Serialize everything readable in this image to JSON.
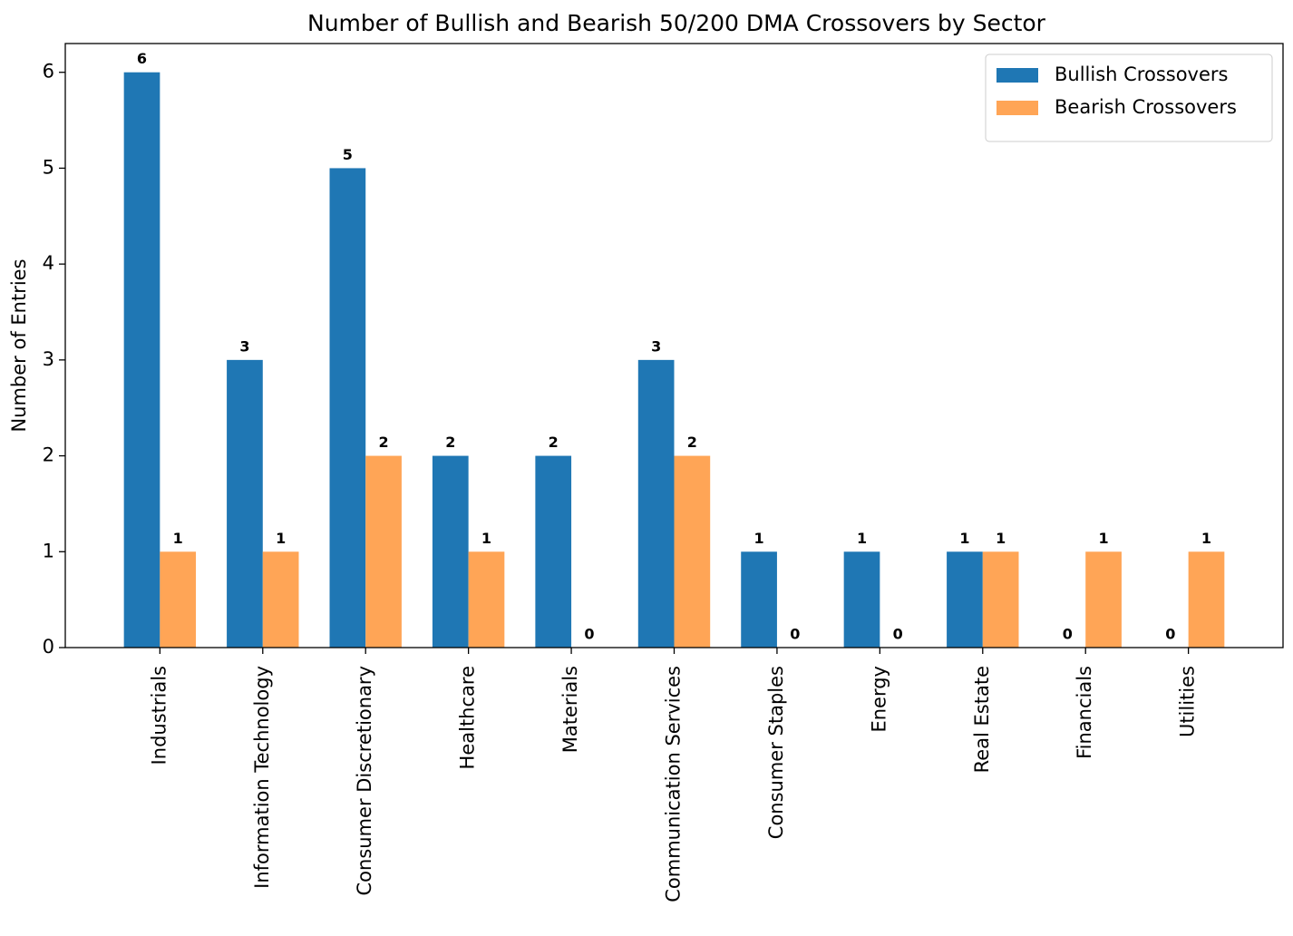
{
  "chart_data": {
    "type": "bar",
    "title": "Number of Bullish and Bearish 50/200 DMA Crossovers by Sector",
    "y_label": "Number of Entries",
    "categories": [
      "Industrials",
      "Information Technology",
      "Consumer Discretionary",
      "Healthcare",
      "Materials",
      "Communication Services",
      "Consumer Staples",
      "Energy",
      "Real Estate",
      "Financials",
      "Utilities"
    ],
    "series": [
      {
        "name": "Bullish Crossovers",
        "color": "#1f77b4",
        "values": [
          6,
          3,
          5,
          2,
          2,
          3,
          1,
          1,
          1,
          0,
          0
        ]
      },
      {
        "name": "Bearish Crossovers",
        "color": "#ffa556",
        "values": [
          1,
          1,
          2,
          1,
          0,
          2,
          0,
          0,
          1,
          1,
          1
        ]
      }
    ],
    "ylim": [
      0,
      6.3
    ],
    "yticks": [
      0,
      1,
      2,
      3,
      4,
      5,
      6
    ],
    "legend": "upper right"
  }
}
